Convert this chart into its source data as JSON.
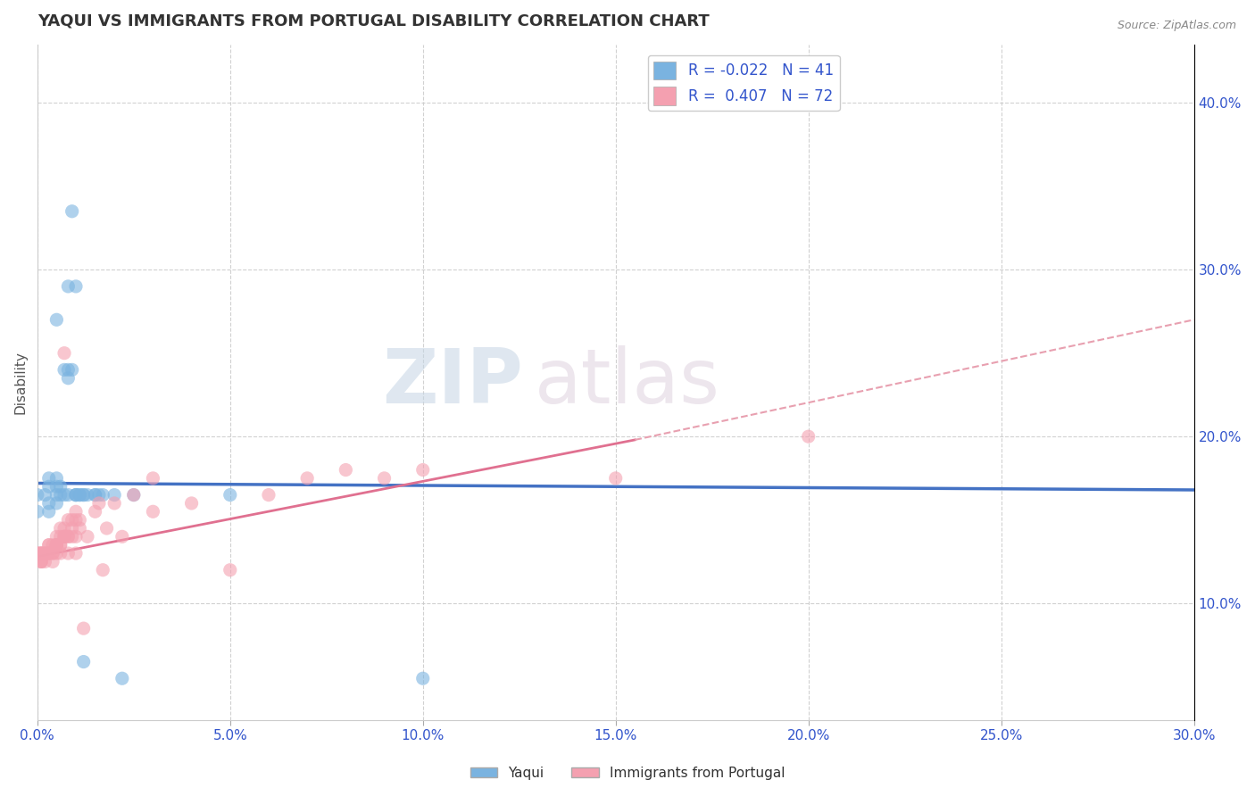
{
  "title": "YAQUI VS IMMIGRANTS FROM PORTUGAL DISABILITY CORRELATION CHART",
  "source": "Source: ZipAtlas.com",
  "xlim": [
    0.0,
    0.3
  ],
  "ylim": [
    0.03,
    0.435
  ],
  "ylabel": "Disability",
  "yaqui_color": "#7ab3e0",
  "portugal_color": "#f4a0b0",
  "yaqui_line_color": "#4472c4",
  "portugal_line_color": "#e07090",
  "portugal_dash_color": "#e8a0b0",
  "yaqui_R": -0.022,
  "yaqui_N": 41,
  "portugal_R": 0.407,
  "portugal_N": 72,
  "legend_text_color": "#3355cc",
  "watermark": "ZIPatlas",
  "watermark_color": "#c8d8e8",
  "yaqui_points": [
    [
      0.0,
      0.155
    ],
    [
      0.0,
      0.165
    ],
    [
      0.002,
      0.165
    ],
    [
      0.003,
      0.17
    ],
    [
      0.003,
      0.16
    ],
    [
      0.003,
      0.155
    ],
    [
      0.003,
      0.175
    ],
    [
      0.005,
      0.27
    ],
    [
      0.005,
      0.16
    ],
    [
      0.005,
      0.17
    ],
    [
      0.005,
      0.175
    ],
    [
      0.005,
      0.165
    ],
    [
      0.006,
      0.17
    ],
    [
      0.006,
      0.165
    ],
    [
      0.007,
      0.24
    ],
    [
      0.007,
      0.165
    ],
    [
      0.008,
      0.24
    ],
    [
      0.008,
      0.235
    ],
    [
      0.008,
      0.29
    ],
    [
      0.008,
      0.165
    ],
    [
      0.009,
      0.24
    ],
    [
      0.009,
      0.335
    ],
    [
      0.01,
      0.29
    ],
    [
      0.01,
      0.165
    ],
    [
      0.01,
      0.165
    ],
    [
      0.01,
      0.165
    ],
    [
      0.011,
      0.165
    ],
    [
      0.011,
      0.165
    ],
    [
      0.012,
      0.165
    ],
    [
      0.012,
      0.165
    ],
    [
      0.012,
      0.065
    ],
    [
      0.013,
      0.165
    ],
    [
      0.015,
      0.165
    ],
    [
      0.015,
      0.165
    ],
    [
      0.016,
      0.165
    ],
    [
      0.017,
      0.165
    ],
    [
      0.02,
      0.165
    ],
    [
      0.022,
      0.055
    ],
    [
      0.025,
      0.165
    ],
    [
      0.05,
      0.165
    ],
    [
      0.1,
      0.055
    ]
  ],
  "portugal_points": [
    [
      0.0,
      0.13
    ],
    [
      0.0,
      0.13
    ],
    [
      0.0,
      0.13
    ],
    [
      0.001,
      0.13
    ],
    [
      0.001,
      0.125
    ],
    [
      0.001,
      0.13
    ],
    [
      0.001,
      0.13
    ],
    [
      0.001,
      0.125
    ],
    [
      0.001,
      0.125
    ],
    [
      0.001,
      0.13
    ],
    [
      0.002,
      0.13
    ],
    [
      0.002,
      0.13
    ],
    [
      0.002,
      0.125
    ],
    [
      0.002,
      0.13
    ],
    [
      0.003,
      0.13
    ],
    [
      0.003,
      0.13
    ],
    [
      0.003,
      0.135
    ],
    [
      0.003,
      0.135
    ],
    [
      0.003,
      0.13
    ],
    [
      0.004,
      0.13
    ],
    [
      0.004,
      0.135
    ],
    [
      0.004,
      0.125
    ],
    [
      0.004,
      0.13
    ],
    [
      0.005,
      0.14
    ],
    [
      0.005,
      0.135
    ],
    [
      0.005,
      0.135
    ],
    [
      0.005,
      0.13
    ],
    [
      0.005,
      0.135
    ],
    [
      0.005,
      0.135
    ],
    [
      0.006,
      0.145
    ],
    [
      0.006,
      0.135
    ],
    [
      0.006,
      0.14
    ],
    [
      0.006,
      0.13
    ],
    [
      0.006,
      0.135
    ],
    [
      0.007,
      0.14
    ],
    [
      0.007,
      0.145
    ],
    [
      0.007,
      0.14
    ],
    [
      0.007,
      0.14
    ],
    [
      0.007,
      0.25
    ],
    [
      0.008,
      0.15
    ],
    [
      0.008,
      0.14
    ],
    [
      0.008,
      0.14
    ],
    [
      0.008,
      0.13
    ],
    [
      0.009,
      0.145
    ],
    [
      0.009,
      0.15
    ],
    [
      0.009,
      0.14
    ],
    [
      0.01,
      0.155
    ],
    [
      0.01,
      0.13
    ],
    [
      0.01,
      0.15
    ],
    [
      0.01,
      0.14
    ],
    [
      0.011,
      0.15
    ],
    [
      0.011,
      0.145
    ],
    [
      0.012,
      0.085
    ],
    [
      0.013,
      0.14
    ],
    [
      0.015,
      0.155
    ],
    [
      0.016,
      0.16
    ],
    [
      0.017,
      0.12
    ],
    [
      0.018,
      0.145
    ],
    [
      0.02,
      0.16
    ],
    [
      0.022,
      0.14
    ],
    [
      0.025,
      0.165
    ],
    [
      0.03,
      0.155
    ],
    [
      0.03,
      0.175
    ],
    [
      0.04,
      0.16
    ],
    [
      0.05,
      0.12
    ],
    [
      0.06,
      0.165
    ],
    [
      0.07,
      0.175
    ],
    [
      0.08,
      0.18
    ],
    [
      0.09,
      0.175
    ],
    [
      0.1,
      0.18
    ],
    [
      0.15,
      0.175
    ],
    [
      0.2,
      0.2
    ]
  ]
}
